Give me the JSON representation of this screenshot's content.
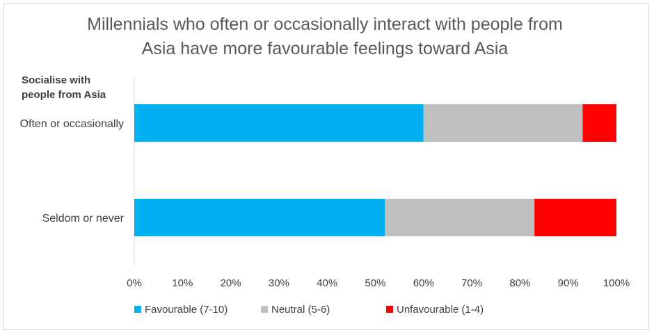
{
  "chart_data": {
    "type": "bar",
    "orientation": "horizontal",
    "stacked": "percent",
    "title_lines": [
      "Millennials who often or occasionally interact with people from",
      "Asia have more favourable feelings toward Asia"
    ],
    "ylabel_lines": [
      "Socialise with",
      "people from Asia"
    ],
    "categories": [
      "Often or occasionally",
      "Seldom or never"
    ],
    "series": [
      {
        "name": "Favourable (7-10)",
        "color": "#00b0f0",
        "values": [
          60,
          52
        ]
      },
      {
        "name": "Neutral (5-6)",
        "color": "#bfbfbf",
        "values": [
          33,
          31
        ]
      },
      {
        "name": "Unfavourable (1-4)",
        "color": "#ff0000",
        "values": [
          7,
          17
        ]
      }
    ],
    "xlim": [
      0,
      100
    ],
    "xticks": [
      "0%",
      "10%",
      "20%",
      "30%",
      "40%",
      "50%",
      "60%",
      "70%",
      "80%",
      "90%",
      "100%"
    ],
    "grid": false,
    "legend_position": "bottom"
  }
}
